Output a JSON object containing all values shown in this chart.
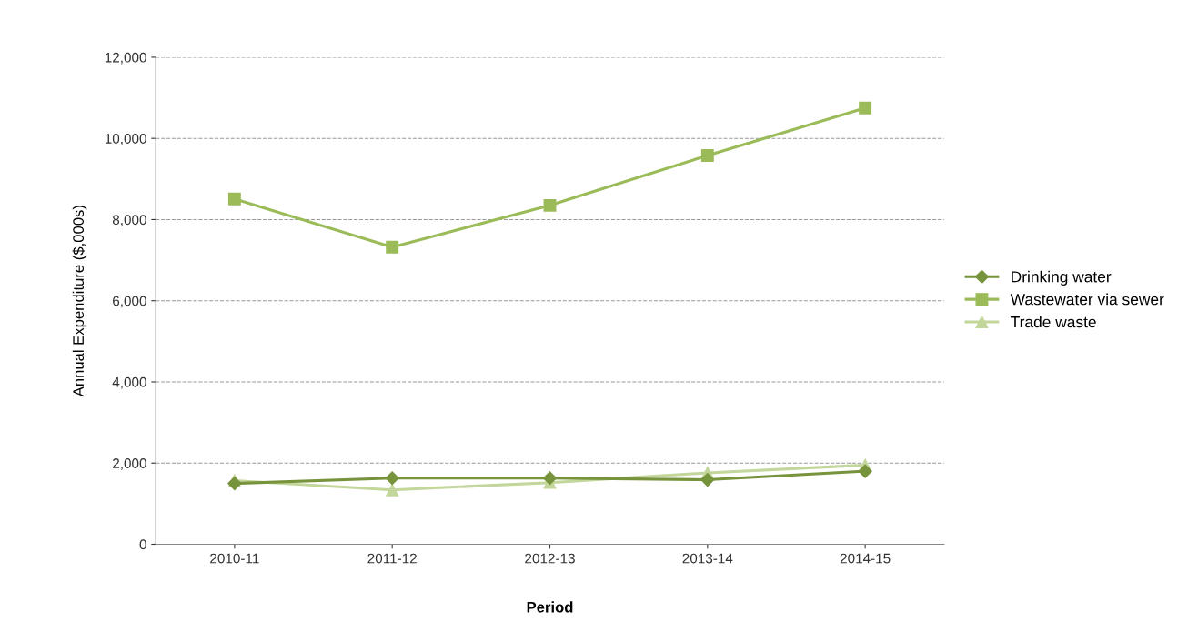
{
  "chart_data": {
    "type": "line",
    "xlabel": "Period",
    "ylabel": "Annual Expenditure ($,000s)",
    "categories": [
      "2010-11",
      "2011-12",
      "2012-13",
      "2013-14",
      "2014-15"
    ],
    "series": [
      {
        "name": "Drinking water",
        "color": "#77933c",
        "marker": "diamond",
        "values": [
          1500,
          1630,
          1630,
          1590,
          1800
        ]
      },
      {
        "name": "Wastewater via sewer",
        "color": "#9bbb59",
        "marker": "square",
        "values": [
          8510,
          7320,
          8350,
          9580,
          10750
        ]
      },
      {
        "name": "Trade waste",
        "color": "#c3d69b",
        "marker": "triangle",
        "values": [
          1570,
          1340,
          1520,
          1760,
          1950
        ]
      }
    ],
    "ylim": [
      0,
      12000
    ],
    "yticks": [
      {
        "value": 0,
        "label": "0"
      },
      {
        "value": 2000,
        "label": "2,000"
      },
      {
        "value": 4000,
        "label": "4,000"
      },
      {
        "value": 6000,
        "label": "6,000"
      },
      {
        "value": 8000,
        "label": "8,000"
      },
      {
        "value": 10000,
        "label": "10,000"
      },
      {
        "value": 12000,
        "label": "12,000"
      }
    ],
    "grid": "y",
    "legend": "right",
    "line_style": "solid"
  }
}
